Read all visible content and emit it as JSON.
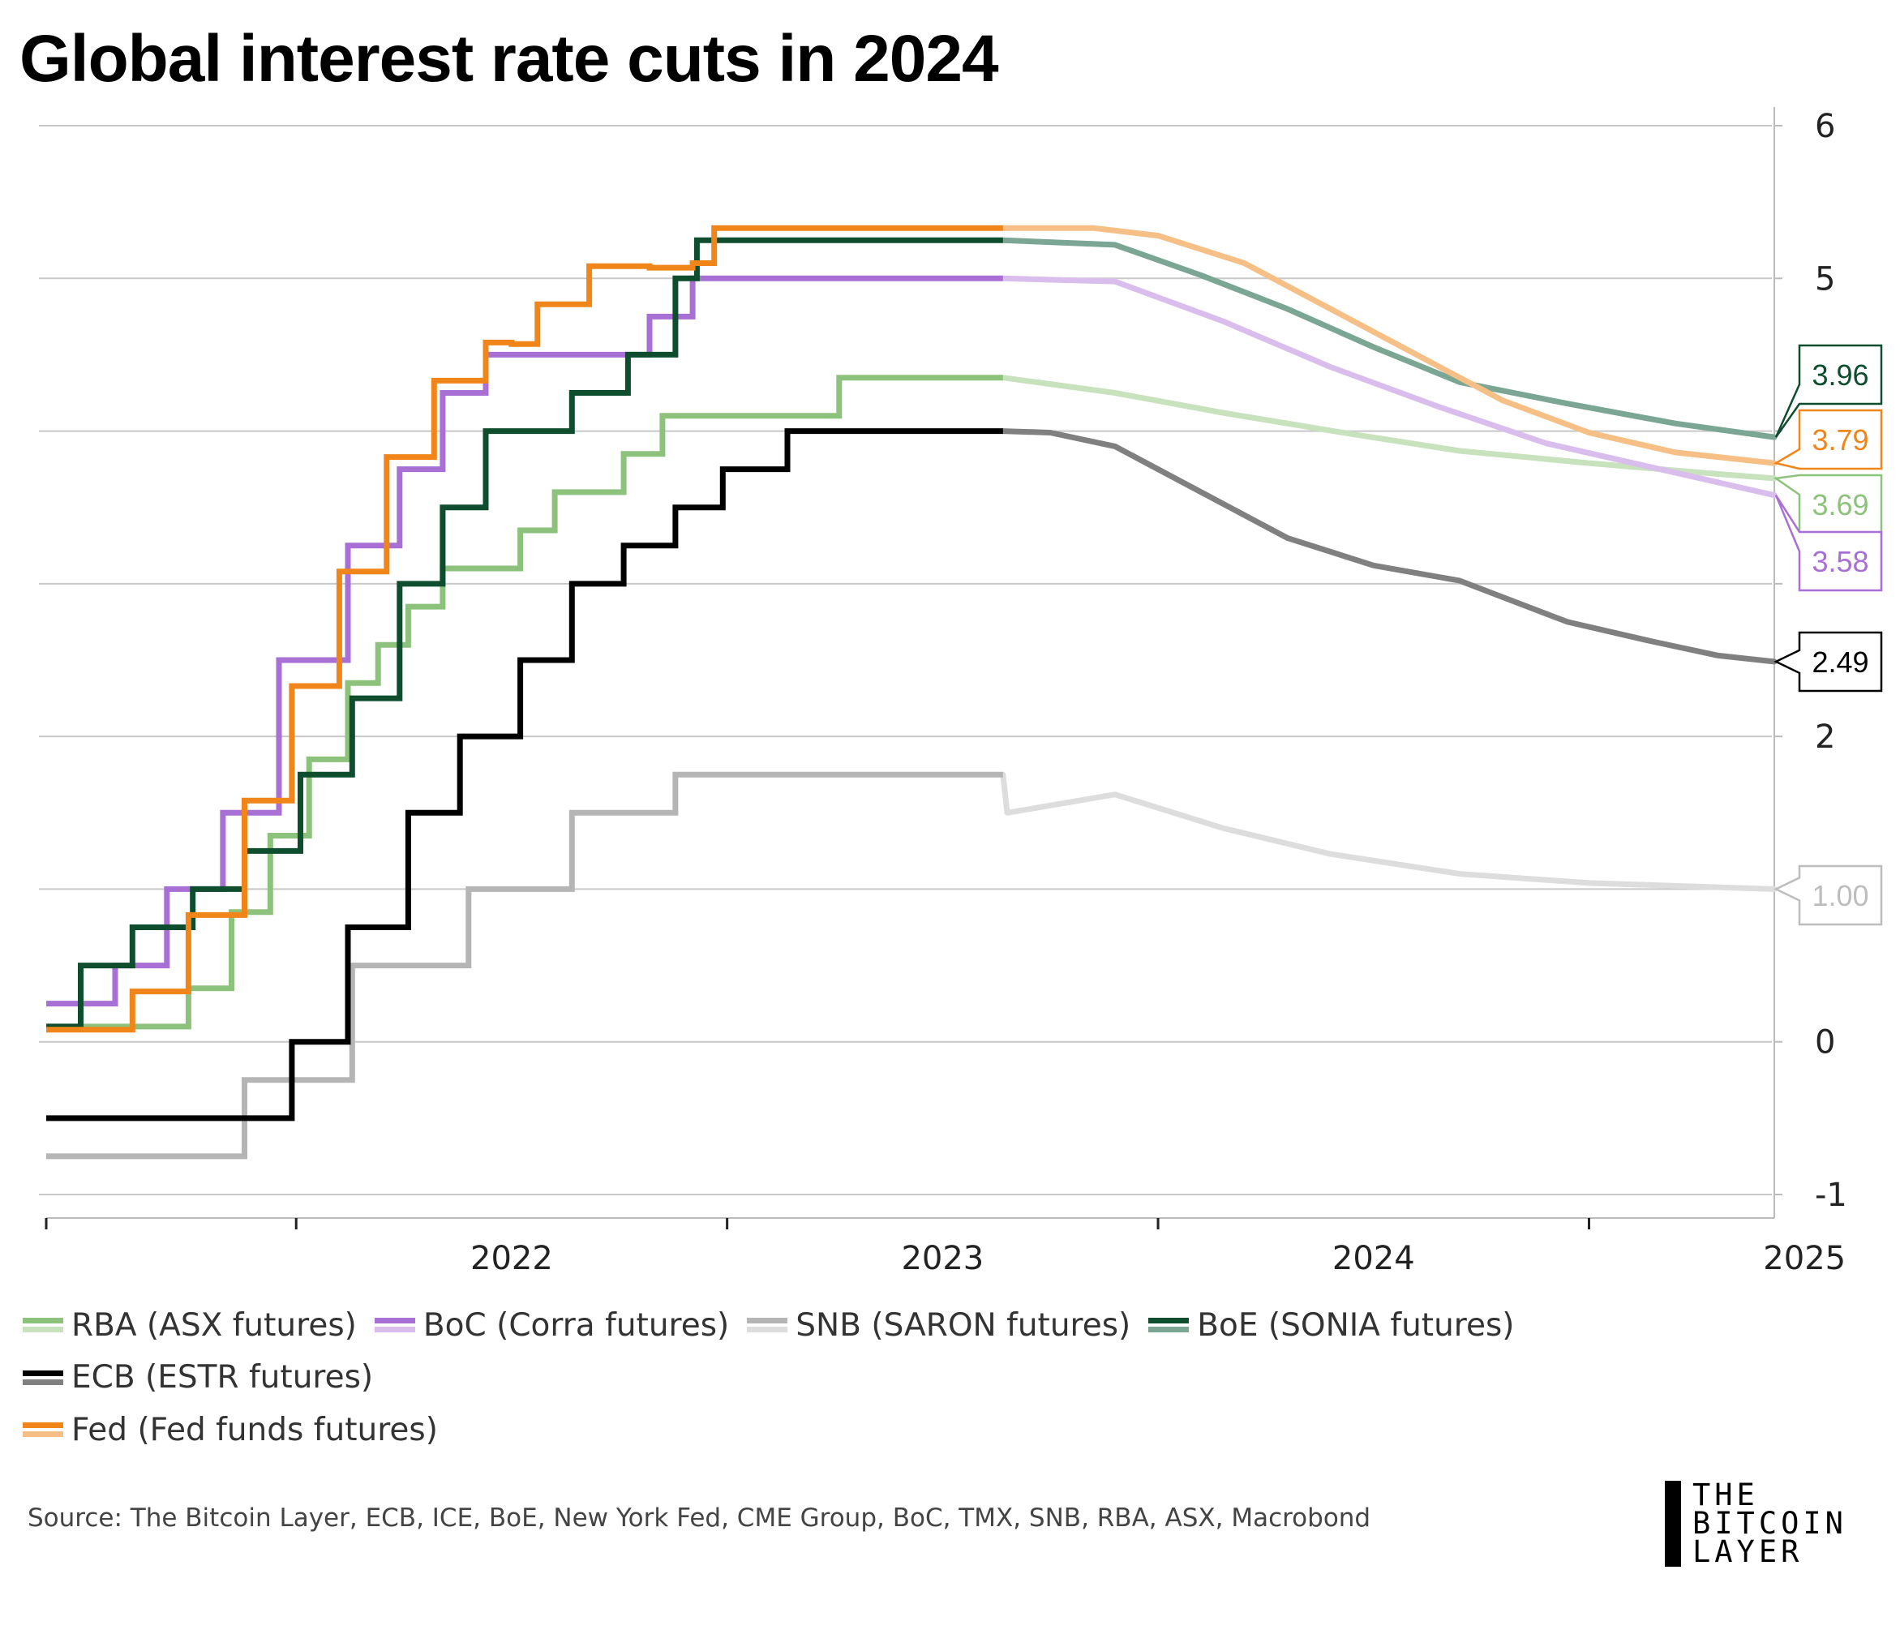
{
  "title": "Global interest rate cuts in 2024",
  "source": "Source: The Bitcoin Layer, ECB, ICE, BoE, New York Fed, CME Group, BoC, TMX, SNB, RBA, ASX, Macrobond",
  "logo": {
    "lines": [
      "THE",
      "BITCOIN",
      "LAYER"
    ]
  },
  "chart_data": {
    "type": "line",
    "title": "Global interest rate cuts in 2024",
    "xlabel": "",
    "ylabel": "",
    "x_tick_labels": [
      "2022",
      "2023",
      "2024",
      "2025"
    ],
    "y_ticks": [
      -1,
      0,
      1,
      2,
      3,
      4,
      5,
      6
    ],
    "y_tick_labels": [
      "-1",
      "0",
      "1.00",
      "2",
      "",
      "",
      "5",
      "6"
    ],
    "xlim": [
      2021.42,
      2025.43
    ],
    "ylim": [
      -1.1,
      6.15
    ],
    "grid": "horizontal",
    "legend_position": "bottom",
    "forecast_start": 2023.64,
    "series": [
      {
        "name": "RBA (ASX futures)",
        "color": "#8dc27c",
        "forecast_color": "#c7e2bd",
        "end_value": "3.69",
        "history": [
          [
            2021.42,
            0.1
          ],
          [
            2021.75,
            0.1
          ],
          [
            2021.75,
            0.35
          ],
          [
            2021.85,
            0.35
          ],
          [
            2021.85,
            0.85
          ],
          [
            2021.94,
            0.85
          ],
          [
            2021.94,
            1.35
          ],
          [
            2022.03,
            1.35
          ],
          [
            2022.03,
            1.85
          ],
          [
            2022.12,
            1.85
          ],
          [
            2022.12,
            2.35
          ],
          [
            2022.19,
            2.35
          ],
          [
            2022.19,
            2.6
          ],
          [
            2022.26,
            2.6
          ],
          [
            2022.26,
            2.85
          ],
          [
            2022.34,
            2.85
          ],
          [
            2022.34,
            3.1
          ],
          [
            2022.52,
            3.1
          ],
          [
            2022.52,
            3.35
          ],
          [
            2022.6,
            3.35
          ],
          [
            2022.6,
            3.6
          ],
          [
            2022.76,
            3.6
          ],
          [
            2022.76,
            3.85
          ],
          [
            2022.85,
            3.85
          ],
          [
            2022.85,
            4.1
          ],
          [
            2023.26,
            4.1
          ],
          [
            2023.26,
            4.35
          ],
          [
            2023.64,
            4.35
          ]
        ],
        "forecast": [
          [
            2023.64,
            4.35
          ],
          [
            2023.9,
            4.25
          ],
          [
            2024.15,
            4.12
          ],
          [
            2024.45,
            3.98
          ],
          [
            2024.7,
            3.87
          ],
          [
            2025.0,
            3.79
          ],
          [
            2025.25,
            3.73
          ],
          [
            2025.43,
            3.69
          ]
        ]
      },
      {
        "name": "BoC (Corra futures)",
        "color": "#a86fd5",
        "forecast_color": "#d9bdec",
        "end_value": "3.58",
        "history": [
          [
            2021.42,
            0.25
          ],
          [
            2021.58,
            0.25
          ],
          [
            2021.58,
            0.5
          ],
          [
            2021.7,
            0.5
          ],
          [
            2021.7,
            1.0
          ],
          [
            2021.83,
            1.0
          ],
          [
            2021.83,
            1.5
          ],
          [
            2021.96,
            1.5
          ],
          [
            2021.96,
            2.5
          ],
          [
            2022.12,
            2.5
          ],
          [
            2022.12,
            3.25
          ],
          [
            2022.24,
            3.25
          ],
          [
            2022.24,
            3.75
          ],
          [
            2022.34,
            3.75
          ],
          [
            2022.34,
            4.25
          ],
          [
            2022.44,
            4.25
          ],
          [
            2022.44,
            4.5
          ],
          [
            2022.82,
            4.5
          ],
          [
            2022.82,
            4.75
          ],
          [
            2022.92,
            4.75
          ],
          [
            2022.92,
            5.0
          ],
          [
            2023.64,
            5.0
          ]
        ],
        "forecast": [
          [
            2023.64,
            5.0
          ],
          [
            2023.9,
            4.98
          ],
          [
            2024.15,
            4.72
          ],
          [
            2024.4,
            4.42
          ],
          [
            2024.65,
            4.16
          ],
          [
            2024.9,
            3.92
          ],
          [
            2025.15,
            3.76
          ],
          [
            2025.43,
            3.58
          ]
        ]
      },
      {
        "name": "SNB (SARON futures)",
        "color": "#b5b5b5",
        "forecast_color": "#dddddd",
        "end_value": "1.00",
        "history": [
          [
            2021.42,
            -0.75
          ],
          [
            2021.88,
            -0.75
          ],
          [
            2021.88,
            -0.25
          ],
          [
            2022.13,
            -0.25
          ],
          [
            2022.13,
            0.5
          ],
          [
            2022.4,
            0.5
          ],
          [
            2022.4,
            1.0
          ],
          [
            2022.64,
            1.0
          ],
          [
            2022.64,
            1.5
          ],
          [
            2022.88,
            1.5
          ],
          [
            2022.88,
            1.75
          ],
          [
            2023.64,
            1.75
          ]
        ],
        "forecast": [
          [
            2023.64,
            1.75
          ],
          [
            2023.65,
            1.5
          ],
          [
            2023.9,
            1.62
          ],
          [
            2024.15,
            1.4
          ],
          [
            2024.4,
            1.23
          ],
          [
            2024.7,
            1.1
          ],
          [
            2025.0,
            1.04
          ],
          [
            2025.43,
            1.0
          ]
        ]
      },
      {
        "name": "BoE (SONIA futures)",
        "color": "#0e4d2e",
        "forecast_color": "#7aa693",
        "end_value": "3.96",
        "history": [
          [
            2021.42,
            0.1
          ],
          [
            2021.5,
            0.1
          ],
          [
            2021.5,
            0.5
          ],
          [
            2021.62,
            0.5
          ],
          [
            2021.62,
            0.75
          ],
          [
            2021.76,
            0.75
          ],
          [
            2021.76,
            1.0
          ],
          [
            2021.88,
            1.0
          ],
          [
            2021.88,
            1.25
          ],
          [
            2022.01,
            1.25
          ],
          [
            2022.01,
            1.75
          ],
          [
            2022.13,
            1.75
          ],
          [
            2022.13,
            2.25
          ],
          [
            2022.24,
            2.25
          ],
          [
            2022.24,
            3.0
          ],
          [
            2022.34,
            3.0
          ],
          [
            2022.34,
            3.5
          ],
          [
            2022.44,
            3.5
          ],
          [
            2022.44,
            4.0
          ],
          [
            2022.64,
            4.0
          ],
          [
            2022.64,
            4.25
          ],
          [
            2022.77,
            4.25
          ],
          [
            2022.77,
            4.5
          ],
          [
            2022.88,
            4.5
          ],
          [
            2022.88,
            5.0
          ],
          [
            2022.93,
            5.0
          ],
          [
            2022.93,
            5.25
          ],
          [
            2023.64,
            5.25
          ]
        ],
        "forecast": [
          [
            2023.64,
            5.25
          ],
          [
            2023.9,
            5.22
          ],
          [
            2024.1,
            5.02
          ],
          [
            2024.3,
            4.8
          ],
          [
            2024.5,
            4.55
          ],
          [
            2024.7,
            4.32
          ],
          [
            2024.95,
            4.18
          ],
          [
            2025.2,
            4.05
          ],
          [
            2025.43,
            3.96
          ]
        ]
      },
      {
        "name": "ECB (ESTR futures)",
        "color": "#000000",
        "forecast_color": "#808080",
        "end_value": "2.49",
        "history": [
          [
            2021.42,
            -0.5
          ],
          [
            2021.99,
            -0.5
          ],
          [
            2021.99,
            0.0
          ],
          [
            2022.12,
            0.0
          ],
          [
            2022.12,
            0.75
          ],
          [
            2022.26,
            0.75
          ],
          [
            2022.26,
            1.5
          ],
          [
            2022.38,
            1.5
          ],
          [
            2022.38,
            2.0
          ],
          [
            2022.52,
            2.0
          ],
          [
            2022.52,
            2.5
          ],
          [
            2022.64,
            2.5
          ],
          [
            2022.64,
            3.0
          ],
          [
            2022.76,
            3.0
          ],
          [
            2022.76,
            3.25
          ],
          [
            2022.88,
            3.25
          ],
          [
            2022.88,
            3.5
          ],
          [
            2022.99,
            3.5
          ],
          [
            2022.99,
            3.75
          ],
          [
            2023.14,
            3.75
          ],
          [
            2023.14,
            4.0
          ],
          [
            2023.64,
            4.0
          ]
        ],
        "forecast": [
          [
            2023.64,
            4.0
          ],
          [
            2023.75,
            3.99
          ],
          [
            2023.9,
            3.9
          ],
          [
            2024.1,
            3.6
          ],
          [
            2024.3,
            3.3
          ],
          [
            2024.5,
            3.12
          ],
          [
            2024.7,
            3.02
          ],
          [
            2024.95,
            2.75
          ],
          [
            2025.15,
            2.62
          ],
          [
            2025.3,
            2.53
          ],
          [
            2025.43,
            2.49
          ]
        ]
      },
      {
        "name": "Fed (Fed funds futures)",
        "color": "#f08519",
        "forecast_color": "#f6bf86",
        "end_value": "3.79",
        "history": [
          [
            2021.42,
            0.08
          ],
          [
            2021.62,
            0.08
          ],
          [
            2021.62,
            0.33
          ],
          [
            2021.75,
            0.33
          ],
          [
            2021.75,
            0.83
          ],
          [
            2021.88,
            0.83
          ],
          [
            2021.88,
            1.58
          ],
          [
            2021.99,
            1.58
          ],
          [
            2021.99,
            2.33
          ],
          [
            2022.1,
            2.33
          ],
          [
            2022.1,
            3.08
          ],
          [
            2022.21,
            3.08
          ],
          [
            2022.21,
            3.83
          ],
          [
            2022.32,
            3.83
          ],
          [
            2022.32,
            4.33
          ],
          [
            2022.44,
            4.33
          ],
          [
            2022.44,
            4.58
          ],
          [
            2022.5,
            4.58
          ],
          [
            2022.5,
            4.57
          ],
          [
            2022.56,
            4.57
          ],
          [
            2022.56,
            4.83
          ],
          [
            2022.68,
            4.83
          ],
          [
            2022.68,
            5.08
          ],
          [
            2022.82,
            5.08
          ],
          [
            2022.82,
            5.07
          ],
          [
            2022.92,
            5.07
          ],
          [
            2022.92,
            5.1
          ],
          [
            2022.97,
            5.1
          ],
          [
            2022.97,
            5.33
          ],
          [
            2023.64,
            5.33
          ]
        ],
        "forecast": [
          [
            2023.64,
            5.33
          ],
          [
            2023.85,
            5.33
          ],
          [
            2024.0,
            5.28
          ],
          [
            2024.2,
            5.1
          ],
          [
            2024.4,
            4.8
          ],
          [
            2024.6,
            4.5
          ],
          [
            2024.8,
            4.2
          ],
          [
            2025.0,
            3.99
          ],
          [
            2025.2,
            3.86
          ],
          [
            2025.43,
            3.79
          ]
        ]
      }
    ]
  }
}
